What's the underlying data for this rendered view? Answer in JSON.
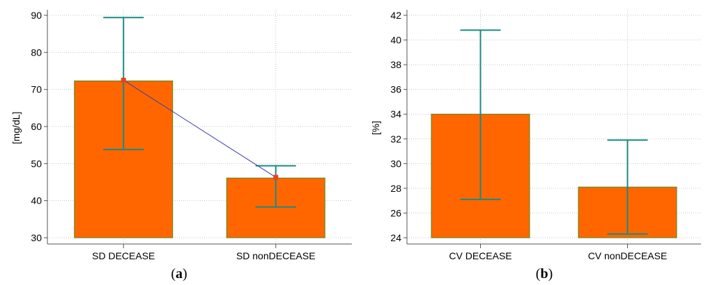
{
  "colors": {
    "bar_fill": "#ff6600",
    "bar_stroke": "#4a8a1c",
    "error_bar": "#1a8a84",
    "line": "#3b3bb0",
    "marker": "#e8421e",
    "grid": "#c8c8c8",
    "axis": "#555555"
  },
  "chart_data": [
    {
      "type": "bar",
      "panel_label": "a",
      "categories": [
        "SD DECEASE",
        "SD nonDECEASE"
      ],
      "values": [
        72.3,
        46.1
      ],
      "error_low": [
        53.8,
        38.3
      ],
      "error_high": [
        89.4,
        49.4
      ],
      "line_points": [
        72.5,
        46.3
      ],
      "ylabel": "[mg/dL]",
      "xlabel": "",
      "ylim": [
        30,
        90
      ],
      "yticks": [
        30,
        40,
        50,
        60,
        70,
        80,
        90
      ],
      "grid": true
    },
    {
      "type": "bar",
      "panel_label": "b",
      "categories": [
        "CV DECEASE",
        "CV nonDECEASE"
      ],
      "values": [
        34.0,
        28.1
      ],
      "error_low": [
        27.1,
        24.3
      ],
      "error_high": [
        40.8,
        31.9
      ],
      "ylabel": "[%]",
      "xlabel": "",
      "ylim": [
        24,
        42
      ],
      "yticks": [
        24,
        26,
        28,
        30,
        32,
        34,
        36,
        38,
        40,
        42
      ],
      "grid": true
    }
  ]
}
